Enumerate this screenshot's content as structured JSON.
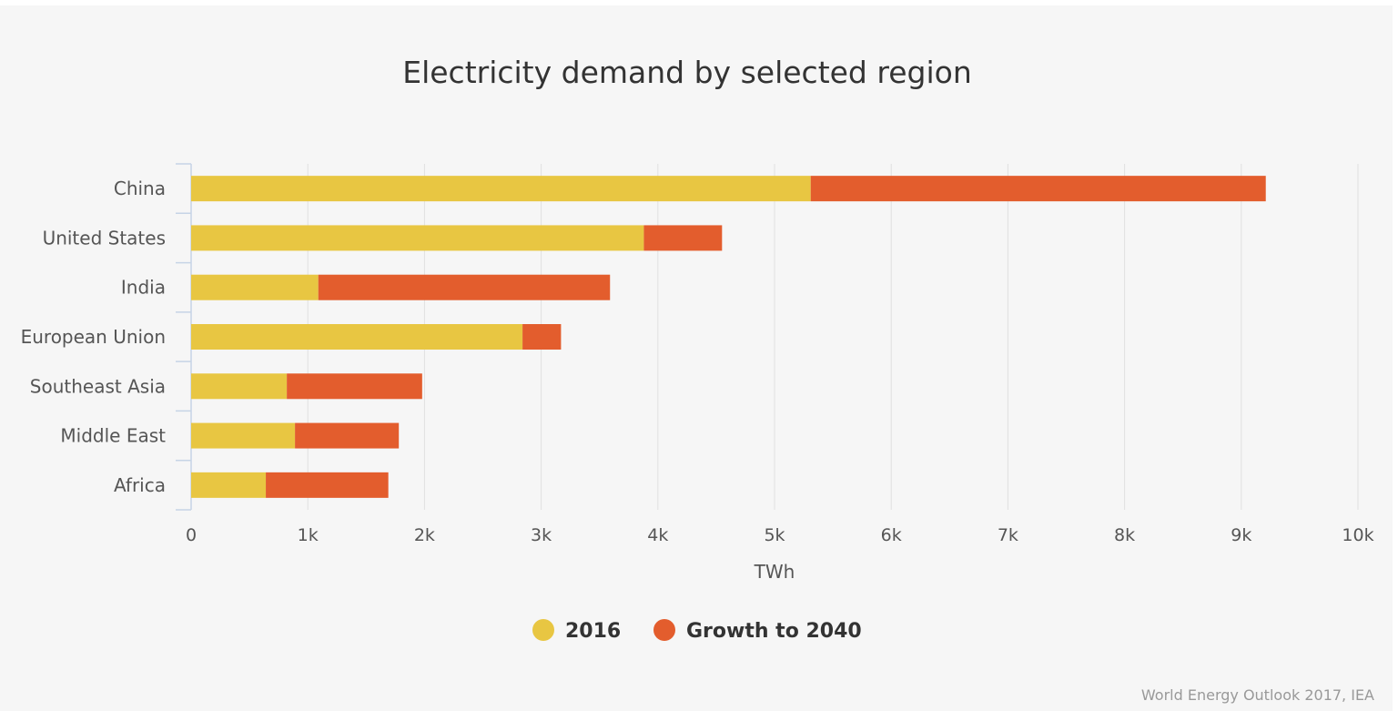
{
  "chart_data": {
    "type": "bar",
    "orientation": "horizontal",
    "stacked": true,
    "title": "Electricity demand by selected region",
    "xlabel": "TWh",
    "ylabel": "",
    "xlim": [
      0,
      10000
    ],
    "x_ticks": [
      0,
      1000,
      2000,
      3000,
      4000,
      5000,
      6000,
      7000,
      8000,
      9000,
      10000
    ],
    "x_tick_labels": [
      "0",
      "1k",
      "2k",
      "3k",
      "4k",
      "5k",
      "6k",
      "7k",
      "8k",
      "9k",
      "10k"
    ],
    "grid": true,
    "categories": [
      "China",
      "United States",
      "India",
      "European Union",
      "Southeast Asia",
      "Middle East",
      "Africa"
    ],
    "series": [
      {
        "name": "2016",
        "color": "#e8c642",
        "values": [
          5310,
          3880,
          1090,
          2840,
          820,
          890,
          640
        ]
      },
      {
        "name": "Growth to 2040",
        "color": "#e35d2d",
        "values": [
          3900,
          670,
          2500,
          330,
          1160,
          890,
          1050
        ]
      }
    ],
    "legend_position": "bottom-center",
    "credit": "World Energy Outlook 2017, IEA"
  }
}
